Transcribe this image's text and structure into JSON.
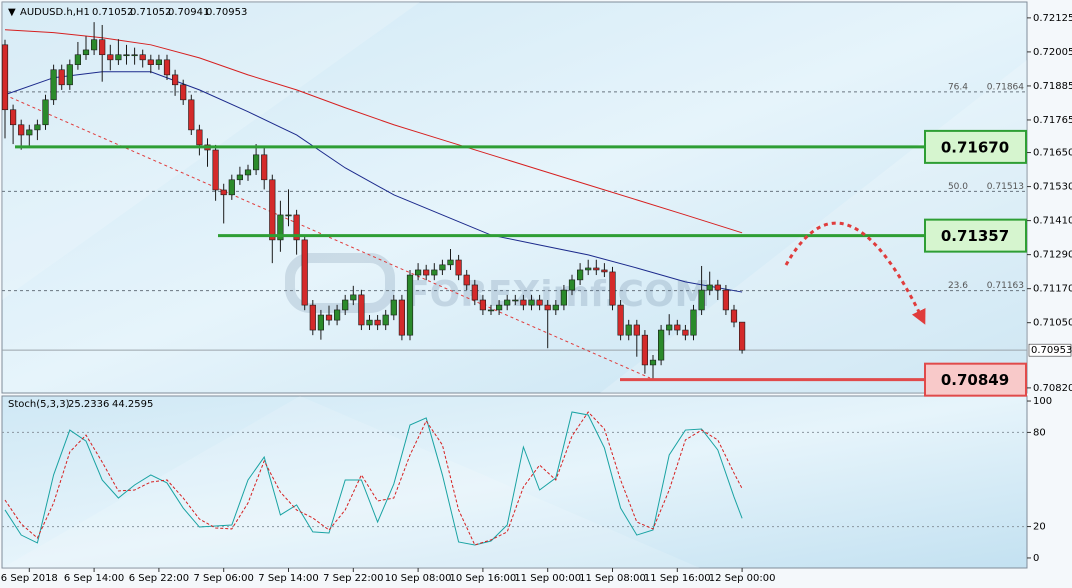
{
  "chart_data": [
    {
      "type": "candlestick",
      "title": "AUDUSD.h,H1",
      "watermark": "FOREXimf.COM",
      "categories": [
        null,
        null,
        null,
        "6 Sep 2018",
        null,
        null,
        null,
        null,
        null,
        null,
        null,
        "6 Sep 14:00",
        null,
        null,
        null,
        null,
        null,
        null,
        null,
        "6 Sep 22:00",
        null,
        null,
        null,
        null,
        null,
        null,
        null,
        "7 Sep 06:00",
        null,
        null,
        null,
        null,
        null,
        null,
        null,
        "7 Sep 14:00",
        null,
        null,
        null,
        null,
        null,
        null,
        null,
        "7 Sep 22:00",
        null,
        null,
        null,
        null,
        null,
        null,
        null,
        "10 Sep 08:00",
        null,
        null,
        null,
        null,
        null,
        null,
        null,
        "10 Sep 16:00",
        null,
        null,
        null,
        null,
        null,
        null,
        null,
        "11 Sep 00:00",
        null,
        null,
        null,
        null,
        null,
        null,
        null,
        "11 Sep 08:00",
        null,
        null,
        null,
        null,
        null,
        null,
        null,
        "11 Sep 16:00",
        null,
        null,
        null,
        null,
        null,
        null,
        null,
        "12 Sep 00:00"
      ],
      "open": [
        0.7203,
        0.71801,
        0.71748,
        0.71712,
        0.7173,
        0.71748,
        0.71836,
        0.71942,
        0.71889,
        0.7196,
        0.71995,
        0.72012,
        0.72048,
        0.71995,
        0.71977,
        0.71995,
        0.71995,
        0.71995,
        0.71977,
        0.7196,
        0.71977,
        0.71924,
        0.71889,
        0.71836,
        0.7173,
        0.71677,
        0.71659,
        0.71518,
        0.71501,
        0.71554,
        0.71571,
        0.71589,
        0.71642,
        0.71554,
        0.71342,
        0.7143,
        0.7143,
        0.71342,
        0.71112,
        0.71024,
        0.71077,
        0.71059,
        0.71095,
        0.7113,
        0.71148,
        0.71042,
        0.71059,
        0.71042,
        0.71077,
        0.7113,
        0.71006,
        0.71218,
        0.71236,
        0.71218,
        0.71236,
        0.71254,
        0.71271,
        0.71218,
        0.71183,
        0.7113,
        0.71095,
        0.71095,
        0.71112,
        0.7113,
        0.7113,
        0.71112,
        0.7113,
        0.71112,
        0.71095,
        0.71112,
        0.71165,
        0.71201,
        0.71236,
        0.71243,
        0.71236,
        0.71229,
        0.71112,
        0.71006,
        0.71042,
        0.71006,
        0.70901,
        0.70918,
        0.71024,
        0.71042,
        0.71024,
        0.71006,
        0.71095,
        0.71165,
        0.71183,
        0.71165,
        0.71095,
        0.71052
      ],
      "high": [
        0.72048,
        0.71819,
        0.71766,
        0.71748,
        0.71766,
        0.71854,
        0.7196,
        0.7196,
        0.71978,
        0.7204,
        0.7206,
        0.7211,
        0.721,
        0.7203,
        0.7205,
        0.7203,
        0.7202,
        0.72013,
        0.71995,
        0.71995,
        0.71995,
        0.71942,
        0.71907,
        0.71854,
        0.71748,
        0.717,
        0.71677,
        0.7154,
        0.71572,
        0.716,
        0.71607,
        0.7168,
        0.7167,
        0.71572,
        0.7148,
        0.7152,
        0.71448,
        0.7136,
        0.7113,
        0.71095,
        0.7111,
        0.71113,
        0.71148,
        0.7118,
        0.71166,
        0.71077,
        0.71077,
        0.71095,
        0.71148,
        0.71148,
        0.71236,
        0.7126,
        0.71254,
        0.7126,
        0.71272,
        0.7131,
        0.71289,
        0.71236,
        0.71201,
        0.71148,
        0.71113,
        0.7113,
        0.71148,
        0.71148,
        0.71148,
        0.71148,
        0.71148,
        0.7113,
        0.7113,
        0.71183,
        0.71219,
        0.7126,
        0.71272,
        0.71272,
        0.7126,
        0.71247,
        0.7113,
        0.7106,
        0.7106,
        0.71024,
        0.70936,
        0.71042,
        0.7108,
        0.7106,
        0.71042,
        0.71113,
        0.7125,
        0.7123,
        0.71201,
        0.71183,
        0.71113,
        0.71052
      ],
      "low": [
        0.717,
        0.7168,
        0.7166,
        0.7167,
        0.71694,
        0.7173,
        0.71818,
        0.71871,
        0.71871,
        0.71942,
        0.71977,
        0.71994,
        0.719,
        0.7194,
        0.71959,
        0.7196,
        0.7196,
        0.7195,
        0.7193,
        0.71942,
        0.71906,
        0.7185,
        0.71818,
        0.71712,
        0.7164,
        0.716,
        0.7148,
        0.714,
        0.71483,
        0.71536,
        0.7155,
        0.71571,
        0.7152,
        0.7126,
        0.713,
        0.7139,
        0.7129,
        0.71094,
        0.71006,
        0.7099,
        0.71041,
        0.71041,
        0.71077,
        0.71112,
        0.71024,
        0.71024,
        0.71024,
        0.71024,
        0.71059,
        0.70988,
        0.70988,
        0.712,
        0.712,
        0.712,
        0.71218,
        0.71236,
        0.712,
        0.71165,
        0.71112,
        0.71077,
        0.71077,
        0.71077,
        0.71094,
        0.71112,
        0.71094,
        0.71094,
        0.71094,
        0.7096,
        0.71077,
        0.71094,
        0.71147,
        0.71183,
        0.71218,
        0.71218,
        0.71211,
        0.71094,
        0.70988,
        0.70988,
        0.7093,
        0.7087,
        0.70849,
        0.709,
        0.71006,
        0.71006,
        0.70988,
        0.70988,
        0.71077,
        0.71147,
        0.7113,
        0.71077,
        0.71034,
        0.70941
      ],
      "close": [
        0.71801,
        0.71748,
        0.71712,
        0.7173,
        0.71748,
        0.71836,
        0.71942,
        0.71889,
        0.7196,
        0.71995,
        0.72012,
        0.72048,
        0.71995,
        0.71977,
        0.71995,
        0.71995,
        0.71995,
        0.71977,
        0.7196,
        0.71977,
        0.71924,
        0.71889,
        0.71836,
        0.7173,
        0.71677,
        0.71659,
        0.71518,
        0.71501,
        0.71554,
        0.71571,
        0.71589,
        0.71642,
        0.71554,
        0.71342,
        0.7143,
        0.7143,
        0.71342,
        0.71112,
        0.71024,
        0.71077,
        0.71059,
        0.71095,
        0.7113,
        0.71148,
        0.71042,
        0.71059,
        0.71042,
        0.71077,
        0.7113,
        0.71006,
        0.71218,
        0.71236,
        0.71218,
        0.71236,
        0.71254,
        0.71271,
        0.71218,
        0.71183,
        0.7113,
        0.71095,
        0.71095,
        0.71112,
        0.7113,
        0.7113,
        0.71112,
        0.7113,
        0.71112,
        0.71095,
        0.71112,
        0.71165,
        0.71201,
        0.71236,
        0.71243,
        0.71236,
        0.71229,
        0.71112,
        0.71006,
        0.71042,
        0.71006,
        0.70901,
        0.70918,
        0.71024,
        0.71042,
        0.71024,
        0.71006,
        0.71095,
        0.71165,
        0.71183,
        0.71165,
        0.71095,
        0.71052,
        0.70953
      ],
      "up_color": "#2b8a2b",
      "down_color": "#d42a2a",
      "lines": [
        {
          "color": "#1c2a8c",
          "x": [
            0,
            6,
            12,
            18,
            24,
            30,
            36,
            42,
            48,
            54,
            60,
            66,
            72,
            78,
            84,
            91
          ],
          "values": [
            0.71854,
            0.71914,
            0.71935,
            0.71935,
            0.71871,
            0.71794,
            0.71712,
            0.71596,
            0.71501,
            0.7143,
            0.71359,
            0.71324,
            0.71289,
            0.71243,
            0.71194,
            0.71158
          ]
        },
        {
          "color": "#d62020",
          "x": [
            0,
            6,
            12,
            18,
            24,
            30,
            36,
            42,
            48,
            54,
            60,
            66,
            72,
            78,
            84,
            91
          ],
          "values": [
            0.72083,
            0.72073,
            0.72055,
            0.7203,
            0.71984,
            0.71924,
            0.71871,
            0.71808,
            0.71748,
            0.71695,
            0.71642,
            0.71589,
            0.71536,
            0.71483,
            0.7143,
            0.71367
          ]
        }
      ],
      "levels": [
        {
          "value": 0.7167,
          "label": "0.71670",
          "color": "#2e9e34",
          "fill": "#d6f5cf"
        },
        {
          "value": 0.71357,
          "label": "0.71357",
          "color": "#2e9e34",
          "fill": "#d6f5cf"
        },
        {
          "value": 0.70849,
          "label": "0.70849",
          "color": "#e04a4a",
          "fill": "#f8c9c9"
        }
      ],
      "fib": [
        {
          "level": "76.4",
          "value": 0.71864
        },
        {
          "level": "50.0",
          "value": 0.71513
        },
        {
          "level": "23.6",
          "value": 0.71163
        }
      ],
      "ylim": [
        0.70802,
        0.72181
      ],
      "yticks": [
        0.72125,
        0.72005,
        0.71885,
        0.71765,
        {
          "value": 0.7165,
          "label": "0.71650"
        },
        {
          "value": 0.7153,
          "label": "0.71530"
        },
        {
          "value": 0.7141,
          "label": "0.71410"
        },
        {
          "value": 0.7129,
          "label": "0.71290"
        },
        {
          "value": 0.7117,
          "label": "0.71170"
        },
        {
          "value": 0.7105,
          "label": "0.71050"
        },
        {
          "value": 0.7082,
          "label": "0.70820"
        }
      ]
    },
    {
      "type": "line",
      "title": "Stoch(5,3,3)",
      "series": [
        {
          "color": "#1aa3a3",
          "x": [
            0,
            2,
            4,
            6,
            8,
            10,
            12,
            14,
            16,
            18,
            20,
            22,
            24,
            26,
            28,
            30,
            32,
            34,
            36,
            38,
            40,
            42,
            44,
            46,
            48,
            50,
            52,
            54,
            56,
            58,
            60,
            62,
            64,
            66,
            68,
            70,
            72,
            74,
            76,
            78,
            80,
            82,
            84,
            86,
            88,
            90,
            91
          ],
          "values": [
            30.6,
            14.6,
            9.6,
            52.9,
            81.5,
            74.5,
            49.7,
            38.2,
            46.5,
            52.9,
            47.8,
            31.8,
            19.7,
            20.4,
            21.0,
            49.7,
            64.3,
            27.4,
            33.8,
            16.6,
            15.9,
            49.7,
            49.7,
            22.9,
            47.1,
            84.7,
            89.2,
            52.9,
            10.2,
            8.3,
            10.8,
            21.0,
            70.7,
            43.3,
            51.0,
            93.0,
            91.1,
            70.1,
            31.8,
            14.6,
            17.8,
            65.6,
            81.5,
            82.2,
            68.8,
            38.9,
            25.2336
          ]
        },
        {
          "color": "#d62020",
          "dashed": true,
          "x": [
            0,
            2,
            4,
            6,
            8,
            10,
            12,
            14,
            16,
            18,
            20,
            22,
            24,
            26,
            28,
            30,
            32,
            34,
            36,
            38,
            40,
            42,
            44,
            46,
            48,
            50,
            52,
            54,
            56,
            58,
            60,
            62,
            64,
            66,
            68,
            70,
            72,
            74,
            76,
            78,
            80,
            82,
            84,
            86,
            88,
            90,
            91
          ],
          "values": [
            36.9,
            21.7,
            12.7,
            35.0,
            67.5,
            78.3,
            61.1,
            42.7,
            43.3,
            48.4,
            49.7,
            38.2,
            24.8,
            19.1,
            18.5,
            35.0,
            61.8,
            42.0,
            30.6,
            25.5,
            17.8,
            30.6,
            52.9,
            36.3,
            38.2,
            65.6,
            87.3,
            72.0,
            30.6,
            8.3,
            11.5,
            16.6,
            45.2,
            59.2,
            49.7,
            77.7,
            93.0,
            82.2,
            49.7,
            22.9,
            18.5,
            43.3,
            75.2,
            81.5,
            75.2,
            54.1,
            44.2595
          ]
        }
      ],
      "levels": [
        80,
        20
      ],
      "ylim": [
        -6.4,
        103.2
      ],
      "yticks": [
        100,
        80,
        20,
        0
      ]
    }
  ]
}
